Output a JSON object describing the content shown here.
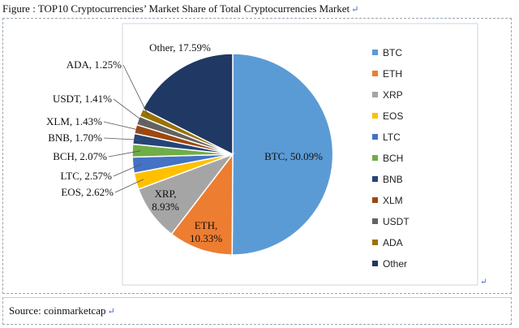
{
  "caption": "Figure : TOP10 Cryptocurrencies’ Market Share of Total Cryptocurrencies Market",
  "source": "Source: coinmarketcap",
  "colors": {
    "BTC": "#5b9bd5",
    "ETH": "#ed7d31",
    "XRP": "#a5a5a5",
    "EOS": "#ffc000",
    "LTC": "#4472c4",
    "BCH": "#70ad47",
    "BNB": "#264478",
    "XLM": "#9e480e",
    "USDT": "#636363",
    "ADA": "#997300",
    "Other": "#203864"
  },
  "chart_data": {
    "type": "pie",
    "title": "",
    "legend_position": "right",
    "slices": [
      {
        "label": "BTC",
        "value": 50.09,
        "text": "BTC, 50.09%"
      },
      {
        "label": "ETH",
        "value": 10.33,
        "text": "ETH, 10.33%"
      },
      {
        "label": "XRP",
        "value": 8.93,
        "text": "XRP, 8.93%"
      },
      {
        "label": "EOS",
        "value": 2.62,
        "text": "EOS, 2.62%"
      },
      {
        "label": "LTC",
        "value": 2.57,
        "text": "LTC, 2.57%"
      },
      {
        "label": "BCH",
        "value": 2.07,
        "text": "BCH, 2.07%"
      },
      {
        "label": "BNB",
        "value": 1.7,
        "text": "BNB, 1.70%"
      },
      {
        "label": "XLM",
        "value": 1.43,
        "text": "XLM, 1.43%"
      },
      {
        "label": "USDT",
        "value": 1.41,
        "text": "USDT, 1.41%"
      },
      {
        "label": "ADA",
        "value": 1.25,
        "text": "ADA, 1.25%"
      },
      {
        "label": "Other",
        "value": 17.59,
        "text": "Other, 17.59%"
      }
    ]
  }
}
